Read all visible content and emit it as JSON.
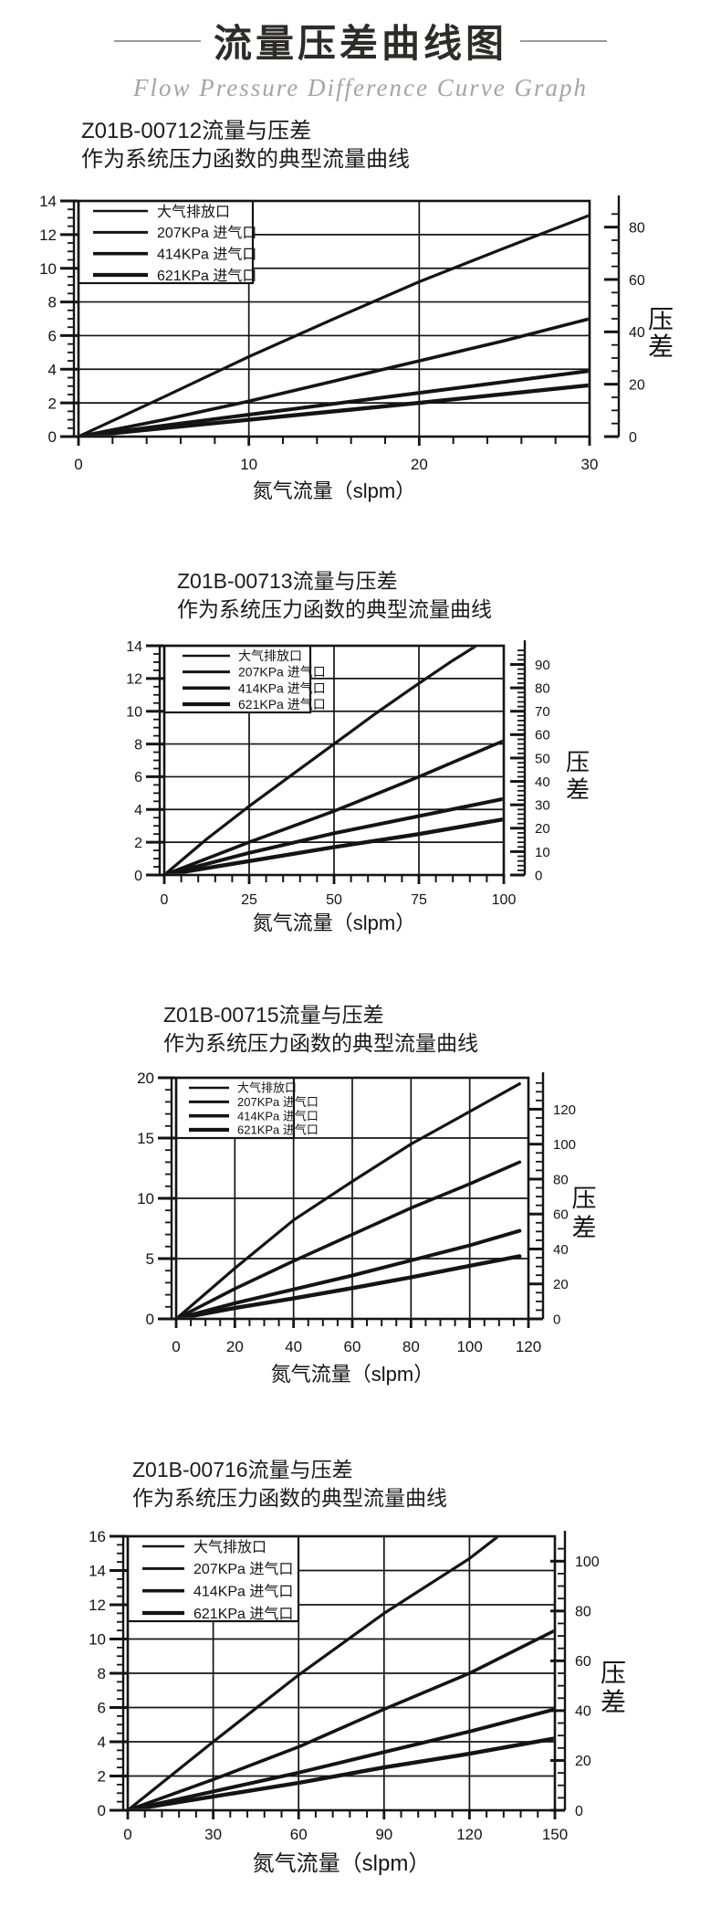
{
  "header": {
    "title": "流量压差曲线图",
    "subtitle": "Flow Pressure Difference Curve Graph"
  },
  "pressure_axis_color": "#4b3a31",
  "ink_color": "#141414",
  "chart_data": [
    {
      "type": "line",
      "model": "Z01B-00712",
      "title_line1": "Z01B-00712流量与压差",
      "title_line2": "作为系统压力函数的典型流量曲线",
      "xlabel": "氮气流量（slpm）",
      "xlim": [
        0,
        30
      ],
      "x_ticks": [
        0,
        10,
        20,
        30
      ],
      "x_minor_step": 2,
      "y_left": {
        "lim": [
          0,
          14
        ],
        "ticks": [
          0,
          2,
          4,
          6,
          8,
          10,
          12,
          14
        ],
        "minor_step": 0.5
      },
      "y_right": {
        "label": "压差",
        "lim": [
          0,
          90
        ],
        "ticks": [
          0,
          20,
          40,
          60,
          80
        ],
        "minor_step": 5
      },
      "grid": true,
      "legend_position": "top-left",
      "legend": [
        "大气排放口",
        "207KPa 进气口",
        "414KPa 进气口",
        "621KPa 进气口"
      ],
      "series": [
        {
          "name": "大气排放口",
          "points": [
            [
              0,
              0
            ],
            [
              5,
              2.35
            ],
            [
              10,
              4.75
            ],
            [
              15,
              7.0
            ],
            [
              20,
              9.2
            ],
            [
              25,
              11.2
            ],
            [
              30,
              13.15
            ]
          ]
        },
        {
          "name": "207KPa 进气口",
          "points": [
            [
              0,
              0
            ],
            [
              5,
              1.0
            ],
            [
              10,
              2.1
            ],
            [
              15,
              3.3
            ],
            [
              20,
              4.5
            ],
            [
              25,
              5.7
            ],
            [
              30,
              7.0
            ]
          ]
        },
        {
          "name": "414KPa 进气口",
          "points": [
            [
              0,
              0
            ],
            [
              10,
              1.3
            ],
            [
              20,
              2.6
            ],
            [
              30,
              3.9
            ]
          ]
        },
        {
          "name": "621KPa 进气口",
          "points": [
            [
              0,
              0
            ],
            [
              10,
              1.0
            ],
            [
              20,
              2.0
            ],
            [
              30,
              3.05
            ]
          ]
        }
      ]
    },
    {
      "type": "line",
      "model": "Z01B-00713",
      "title_line1": "Z01B-00713流量与压差",
      "title_line2": "作为系统压力函数的典型流量曲线",
      "xlabel": "氮气流量（slpm）",
      "xlim": [
        0,
        100
      ],
      "x_ticks": [
        0,
        25,
        50,
        75,
        100
      ],
      "x_minor_step": 5,
      "y_left": {
        "lim": [
          0,
          14
        ],
        "ticks": [
          0,
          2,
          4,
          6,
          8,
          10,
          12,
          14
        ],
        "minor_step": 0.5
      },
      "y_right": {
        "label": "压差",
        "lim": [
          0,
          98
        ],
        "ticks": [
          0,
          10,
          20,
          30,
          40,
          50,
          60,
          70,
          80,
          90
        ],
        "minor_step": 2
      },
      "grid": true,
      "legend_position": "top-left",
      "legend": [
        "大气排放口",
        "207KPa 进气口",
        "414KPa 进气口",
        "621KPa 进气口"
      ],
      "series": [
        {
          "name": "大气排放口",
          "points": [
            [
              0,
              0
            ],
            [
              12.5,
              2.2
            ],
            [
              25,
              4.2
            ],
            [
              37.5,
              6.1
            ],
            [
              50,
              8.0
            ],
            [
              62.5,
              9.9
            ],
            [
              75,
              11.7
            ],
            [
              85,
              13.1
            ],
            [
              95,
              14.4
            ]
          ]
        },
        {
          "name": "207KPa 进气口",
          "points": [
            [
              0,
              0
            ],
            [
              25,
              2.0
            ],
            [
              50,
              3.9
            ],
            [
              75,
              6.0
            ],
            [
              100,
              8.2
            ]
          ]
        },
        {
          "name": "414KPa 进气口",
          "points": [
            [
              0,
              0
            ],
            [
              25,
              1.35
            ],
            [
              50,
              2.55
            ],
            [
              75,
              3.6
            ],
            [
              100,
              4.65
            ]
          ]
        },
        {
          "name": "621KPa 进气口",
          "points": [
            [
              0,
              0
            ],
            [
              25,
              0.85
            ],
            [
              50,
              1.7
            ],
            [
              75,
              2.5
            ],
            [
              100,
              3.4
            ]
          ]
        }
      ]
    },
    {
      "type": "line",
      "model": "Z01B-00715",
      "title_line1": "Z01B-00715流量与压差",
      "title_line2": "作为系统压力函数的典型流量曲线",
      "xlabel": "氮气流量（slpm）",
      "xlim": [
        0,
        120
      ],
      "x_ticks": [
        0,
        20,
        40,
        60,
        80,
        100,
        120
      ],
      "x_minor_step": 5,
      "y_left": {
        "lim": [
          0,
          20
        ],
        "ticks": [
          0,
          5,
          10,
          15,
          20
        ],
        "minor_step": 1
      },
      "y_right": {
        "label": "压差",
        "lim": [
          0,
          138
        ],
        "ticks": [
          0,
          20,
          40,
          60,
          80,
          100,
          120
        ],
        "minor_step": 5
      },
      "grid": true,
      "legend_position": "top-left",
      "legend": [
        "大气排放口",
        "207KPa 进气口",
        "414KPa 进气口",
        "621KPa 进气口"
      ],
      "series": [
        {
          "name": "大气排放口",
          "points": [
            [
              0,
              0
            ],
            [
              20,
              4.2
            ],
            [
              40,
              8.2
            ],
            [
              60,
              11.4
            ],
            [
              80,
              14.5
            ],
            [
              100,
              17.2
            ],
            [
              117,
              19.5
            ]
          ]
        },
        {
          "name": "207KPa 进气口",
          "points": [
            [
              0,
              0
            ],
            [
              20,
              2.5
            ],
            [
              40,
              4.8
            ],
            [
              60,
              7.0
            ],
            [
              80,
              9.2
            ],
            [
              100,
              11.2
            ],
            [
              117,
              13.0
            ]
          ]
        },
        {
          "name": "414KPa 进气口",
          "points": [
            [
              0,
              0
            ],
            [
              20,
              1.3
            ],
            [
              40,
              2.45
            ],
            [
              60,
              3.6
            ],
            [
              80,
              4.85
            ],
            [
              100,
              6.1
            ],
            [
              117,
              7.3
            ]
          ]
        },
        {
          "name": "621KPa 进气口",
          "points": [
            [
              0,
              0
            ],
            [
              20,
              0.9
            ],
            [
              40,
              1.7
            ],
            [
              60,
              2.55
            ],
            [
              80,
              3.45
            ],
            [
              100,
              4.4
            ],
            [
              117,
              5.2
            ]
          ]
        }
      ]
    },
    {
      "type": "line",
      "model": "Z01B-00716",
      "title_line1": "Z01B-00716流量与压差",
      "title_line2": "作为系统压力函数的典型流量曲线",
      "xlabel": "氮气流量（slpm）",
      "xlim": [
        0,
        150
      ],
      "x_ticks": [
        0,
        30,
        60,
        90,
        120,
        150
      ],
      "x_minor_step": 6,
      "y_left": {
        "lim": [
          0,
          16
        ],
        "ticks": [
          0,
          2,
          4,
          6,
          8,
          10,
          12,
          14,
          16
        ],
        "minor_step": 0.5
      },
      "y_right": {
        "label": "压差",
        "lim": [
          0,
          110
        ],
        "ticks": [
          0,
          20,
          40,
          60,
          80,
          100
        ],
        "minor_step": 5
      },
      "grid": true,
      "legend_position": "top-left",
      "legend": [
        "大气排放口",
        "207KPa 进气口",
        "414KPa 进气口",
        "621KPa 进气口"
      ],
      "series": [
        {
          "name": "大气排放口",
          "points": [
            [
              0,
              0
            ],
            [
              30,
              4.0
            ],
            [
              60,
              7.9
            ],
            [
              90,
              11.5
            ],
            [
              120,
              14.7
            ],
            [
              134,
              16.5
            ]
          ]
        },
        {
          "name": "207KPa 进气口",
          "points": [
            [
              0,
              0
            ],
            [
              30,
              1.8
            ],
            [
              60,
              3.7
            ],
            [
              90,
              5.9
            ],
            [
              120,
              8.0
            ],
            [
              150,
              10.5
            ]
          ]
        },
        {
          "name": "414KPa 进气口",
          "points": [
            [
              0,
              0
            ],
            [
              30,
              1.1
            ],
            [
              60,
              2.2
            ],
            [
              90,
              3.4
            ],
            [
              120,
              4.6
            ],
            [
              150,
              5.9
            ]
          ]
        },
        {
          "name": "621KPa 进气口",
          "points": [
            [
              0,
              0
            ],
            [
              30,
              0.8
            ],
            [
              60,
              1.6
            ],
            [
              90,
              2.5
            ],
            [
              120,
              3.3
            ],
            [
              150,
              4.2
            ]
          ]
        }
      ]
    }
  ]
}
